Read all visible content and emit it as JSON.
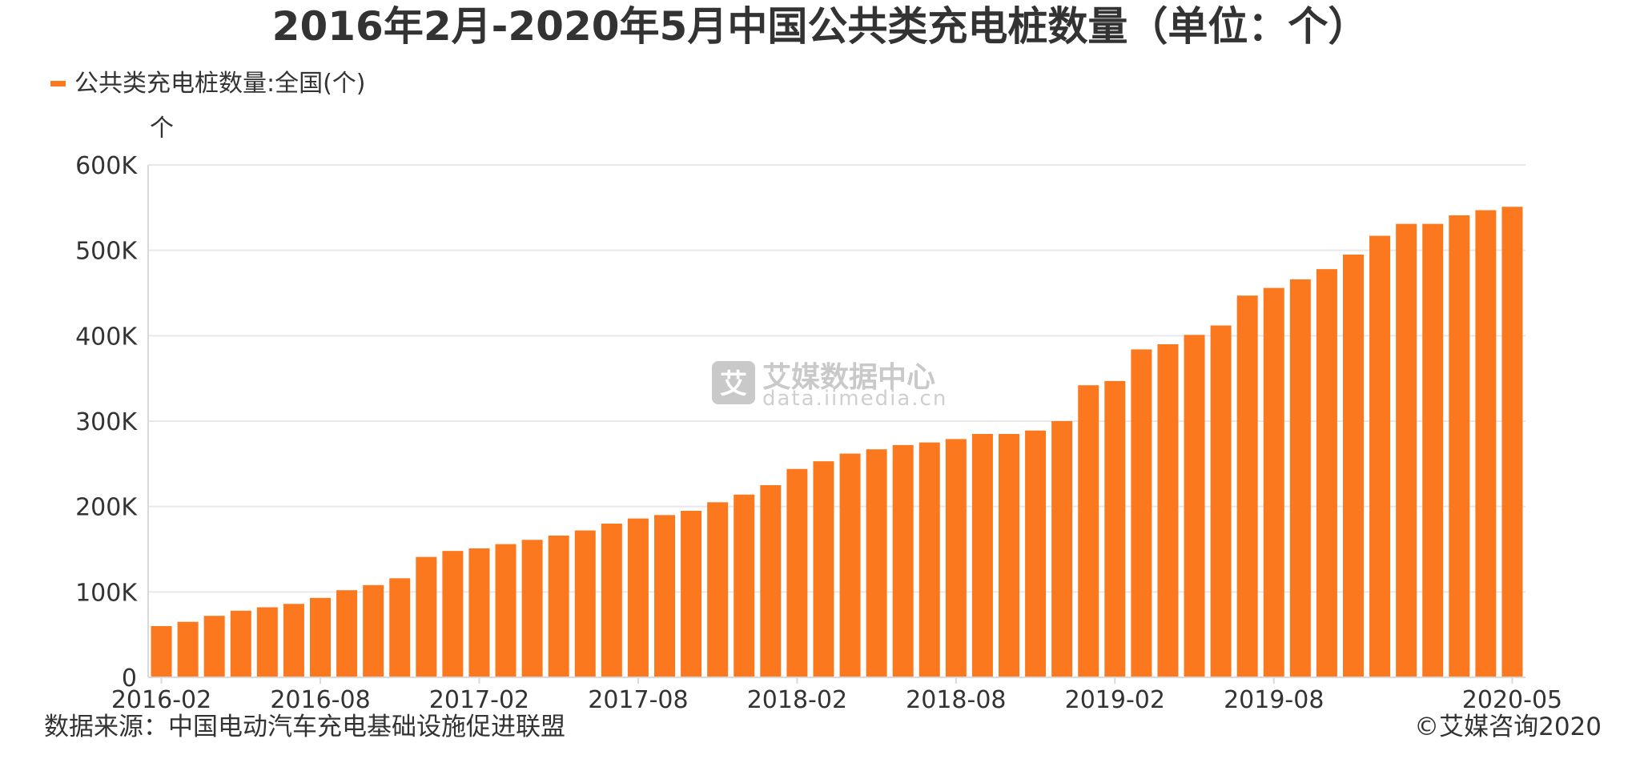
{
  "chart_data": {
    "type": "bar",
    "title": "2016年2月-2020年5月中国公共类充电桩数量（单位：个）",
    "ylabel": "个",
    "xlabel": "",
    "ylim": [
      0,
      600000
    ],
    "y_ticks": [
      0,
      100000,
      200000,
      300000,
      400000,
      500000,
      600000
    ],
    "y_tick_labels": [
      "0",
      "100K",
      "200K",
      "300K",
      "400K",
      "500K",
      "600K"
    ],
    "x_tick_labels": [
      "2016-02",
      "2016-08",
      "2017-02",
      "2017-08",
      "2018-02",
      "2018-08",
      "2019-02",
      "2019-08",
      "2020-05"
    ],
    "grid": true,
    "legend_position": "top-left",
    "categories": [
      "2016-02",
      "2016-03",
      "2016-04",
      "2016-05",
      "2016-06",
      "2016-07",
      "2016-08",
      "2016-09",
      "2016-10",
      "2016-11",
      "2016-12",
      "2017-01",
      "2017-02",
      "2017-03",
      "2017-04",
      "2017-05",
      "2017-06",
      "2017-07",
      "2017-08",
      "2017-09",
      "2017-10",
      "2017-11",
      "2017-12",
      "2018-01",
      "2018-02",
      "2018-03",
      "2018-04",
      "2018-05",
      "2018-06",
      "2018-07",
      "2018-08",
      "2018-09",
      "2018-10",
      "2018-11",
      "2018-12",
      "2019-01",
      "2019-02",
      "2019-03",
      "2019-04",
      "2019-05",
      "2019-06",
      "2019-07",
      "2019-08",
      "2019-09",
      "2019-10",
      "2019-11",
      "2019-12",
      "2020-01",
      "2020-02",
      "2020-03",
      "2020-04",
      "2020-05"
    ],
    "series": [
      {
        "name": "公共类充电桩数量:全国(个)",
        "color": "#fc781e",
        "values": [
          60000,
          65000,
          72000,
          78000,
          82000,
          86000,
          93000,
          102000,
          108000,
          116000,
          141000,
          148000,
          151000,
          156000,
          161000,
          166000,
          172000,
          180000,
          186000,
          190000,
          195000,
          205000,
          214000,
          225000,
          244000,
          253000,
          262000,
          267000,
          272000,
          275000,
          279000,
          285000,
          285000,
          289000,
          300000,
          342000,
          347000,
          384000,
          390000,
          401000,
          412000,
          447000,
          456000,
          466000,
          478000,
          495000,
          517000,
          531000,
          531000,
          541000,
          547000,
          551000
        ]
      }
    ]
  },
  "watermark": {
    "brand": "艾媒数据中心",
    "url": "data.iimedia.cn",
    "logo_glyph": "艾"
  },
  "footer": {
    "source": "数据来源：中国电动汽车充电基础设施促进联盟",
    "copyright": "©艾媒咨询2020"
  },
  "colors": {
    "bar": "#fc781e",
    "text": "#333333",
    "grid": "#e8e8e8",
    "watermark": "#c9c9c9"
  }
}
